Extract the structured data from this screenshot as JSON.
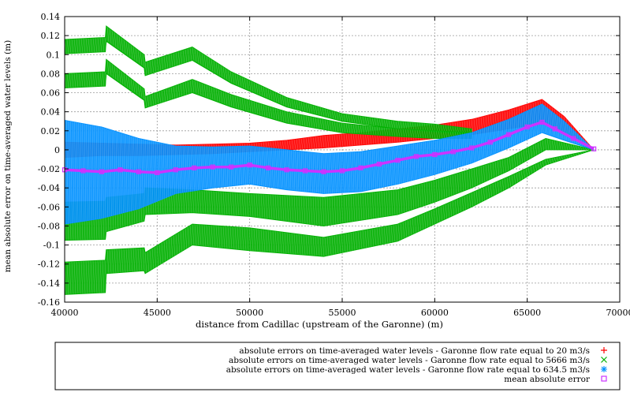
{
  "chart_data": {
    "type": "scatter",
    "title": "",
    "xlabel": "distance from Cadillac (upstream of the Garonne) (m)",
    "ylabel": "mean absolute error on time-averaged water levels (m)",
    "xlim": [
      40000,
      70000
    ],
    "ylim": [
      -0.16,
      0.14
    ],
    "xticks": [
      40000,
      45000,
      50000,
      55000,
      60000,
      65000,
      70000
    ],
    "yticks": [
      -0.16,
      -0.14,
      -0.12,
      -0.1,
      -0.08,
      -0.06,
      -0.04,
      -0.02,
      0,
      0.02,
      0.04,
      0.06,
      0.08,
      0.1,
      0.12,
      0.14
    ],
    "ytick_labels": [
      "-0.16",
      "-0.14",
      "-0.12",
      "-0.1",
      "-0.08",
      "-0.06",
      "-0.04",
      "-0.02",
      "0",
      "0.02",
      "0.04",
      "0.06",
      "0.08",
      "0.1",
      "0.12",
      "0.14"
    ],
    "grid": true,
    "legend_position": "bottom",
    "series": [
      {
        "name": "absolute errors on time-averaged water levels - Garonne flow rate equal to 20 m3/s",
        "color": "#ff0000",
        "marker": "+",
        "x": [
          40000,
          42000,
          44000,
          46000,
          48000,
          50000,
          52000,
          54000,
          56000,
          58000,
          60000,
          62000,
          64000,
          65800,
          67000,
          68600
        ],
        "upper": [
          0.008,
          0.007,
          0.006,
          0.005,
          0.006,
          0.007,
          0.01,
          0.015,
          0.018,
          0.022,
          0.026,
          0.032,
          0.042,
          0.053,
          0.035,
          0.0
        ],
        "lower": [
          -0.008,
          -0.006,
          -0.006,
          -0.005,
          -0.004,
          -0.002,
          0.0,
          0.002,
          0.005,
          0.008,
          0.012,
          0.016,
          0.022,
          0.028,
          0.018,
          0.0
        ]
      },
      {
        "name": "absolute errors on time-averaged water levels - Garonne flow rate equal to 5666 m3/s",
        "color": "#00b000",
        "marker": "x",
        "bands": [
          {
            "x": [
              40000,
              42200,
              42250,
              44300,
              44350,
              46900,
              49000,
              52000,
              55000,
              58000,
              60000,
              62000
            ],
            "upper": [
              0.116,
              0.118,
              0.13,
              0.1,
              0.092,
              0.108,
              0.082,
              0.055,
              0.038,
              0.03,
              0.027,
              0.022
            ],
            "lower": [
              0.101,
              0.103,
              0.114,
              0.086,
              0.078,
              0.094,
              0.07,
              0.045,
              0.03,
              0.022,
              0.019,
              0.016
            ]
          },
          {
            "x": [
              40000,
              42200,
              42250,
              44300,
              44350,
              46900,
              49000,
              52000,
              55000,
              58000,
              60000,
              62000
            ],
            "upper": [
              0.08,
              0.082,
              0.095,
              0.064,
              0.056,
              0.074,
              0.058,
              0.04,
              0.028,
              0.022,
              0.02,
              0.018
            ],
            "lower": [
              0.065,
              0.067,
              0.08,
              0.052,
              0.044,
              0.06,
              0.045,
              0.028,
              0.018,
              0.014,
              0.012,
              0.012
            ]
          },
          {
            "x": [
              40000,
              42200,
              42250,
              44300,
              44350,
              46900,
              50000,
              54000,
              58000,
              60000,
              62000,
              64000,
              66000,
              68600
            ],
            "upper": [
              -0.055,
              -0.054,
              -0.05,
              -0.046,
              -0.04,
              -0.042,
              -0.046,
              -0.05,
              -0.042,
              -0.032,
              -0.02,
              -0.008,
              0.012,
              0.0
            ],
            "lower": [
              -0.095,
              -0.094,
              -0.086,
              -0.075,
              -0.068,
              -0.066,
              -0.07,
              -0.08,
              -0.068,
              -0.055,
              -0.04,
              -0.022,
              0.0,
              0.0
            ]
          },
          {
            "x": [
              40000,
              42200,
              42250,
              44300,
              44350,
              46900,
              50000,
              54000,
              58000,
              60000,
              62000,
              64000,
              66000,
              68600
            ],
            "upper": [
              -0.118,
              -0.116,
              -0.105,
              -0.103,
              -0.108,
              -0.078,
              -0.082,
              -0.092,
              -0.078,
              -0.062,
              -0.045,
              -0.028,
              -0.01,
              0.0
            ],
            "lower": [
              -0.152,
              -0.15,
              -0.13,
              -0.127,
              -0.13,
              -0.1,
              -0.106,
              -0.112,
              -0.096,
              -0.078,
              -0.06,
              -0.04,
              -0.016,
              0.0
            ]
          }
        ]
      },
      {
        "name": "absolute errors on time-averaged water levels - Garonne flow rate equal to 634.5 m3/s",
        "color": "#0090ff",
        "marker": "*",
        "x": [
          40000,
          42000,
          44000,
          46000,
          48000,
          50000,
          52000,
          54000,
          56000,
          58000,
          60000,
          62000,
          64000,
          65800,
          67000,
          68600
        ],
        "upper": [
          0.031,
          0.024,
          0.012,
          0.004,
          0.003,
          0.004,
          0.0,
          -0.004,
          -0.002,
          0.004,
          0.01,
          0.018,
          0.032,
          0.048,
          0.03,
          0.0
        ],
        "lower": [
          -0.078,
          -0.072,
          -0.062,
          -0.046,
          -0.04,
          -0.036,
          -0.042,
          -0.046,
          -0.044,
          -0.036,
          -0.026,
          -0.014,
          0.002,
          0.018,
          0.01,
          0.0
        ]
      },
      {
        "name": "mean absolute error",
        "color": "#cc33ff",
        "marker": "square",
        "x": [
          40000,
          41000,
          42000,
          43000,
          44000,
          45000,
          46000,
          47000,
          48000,
          49000,
          50000,
          51000,
          52000,
          53000,
          54000,
          55000,
          56000,
          57000,
          58000,
          59000,
          60000,
          61000,
          62000,
          63000,
          64000,
          65000,
          65800,
          66500,
          67500,
          68600
        ],
        "y": [
          -0.021,
          -0.022,
          -0.023,
          -0.021,
          -0.023,
          -0.024,
          -0.021,
          -0.019,
          -0.018,
          -0.018,
          -0.016,
          -0.019,
          -0.021,
          -0.022,
          -0.023,
          -0.022,
          -0.019,
          -0.015,
          -0.011,
          -0.007,
          -0.005,
          -0.002,
          0.002,
          0.008,
          0.016,
          0.024,
          0.029,
          0.022,
          0.012,
          0.001
        ]
      }
    ]
  }
}
